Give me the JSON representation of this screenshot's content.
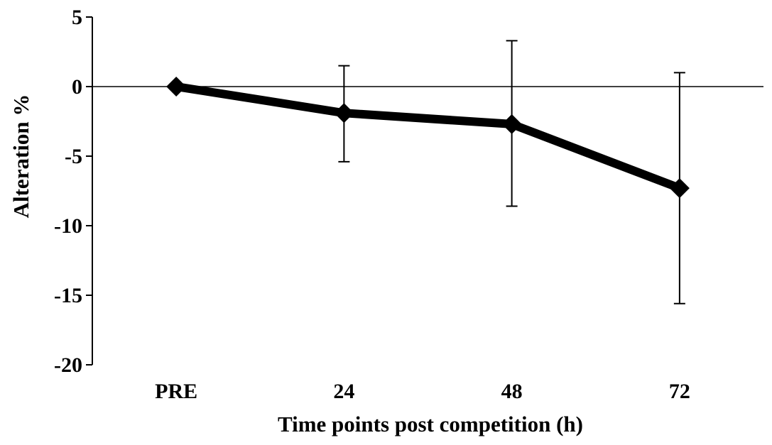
{
  "chart_data": {
    "type": "line",
    "title": "",
    "xlabel": "Time points post competition (h)",
    "ylabel": "Alteration %",
    "categories": [
      "PRE",
      "24",
      "48",
      "72"
    ],
    "ylim": [
      -20,
      5
    ],
    "yticks": [
      5,
      0,
      -5,
      -10,
      -15,
      -20
    ],
    "ytick_labels": [
      "5",
      "0",
      "-5",
      "-10",
      "-15",
      "-20"
    ],
    "grid": false,
    "legend": "none",
    "series": [
      {
        "values": [
          0,
          -1.9,
          -2.7,
          -7.3
        ],
        "error_upper": [
          0,
          1.5,
          3.3,
          1.0
        ],
        "error_lower": [
          0,
          -5.4,
          -8.6,
          -15.6
        ],
        "color": "#000000",
        "marker": "diamond"
      }
    ]
  }
}
